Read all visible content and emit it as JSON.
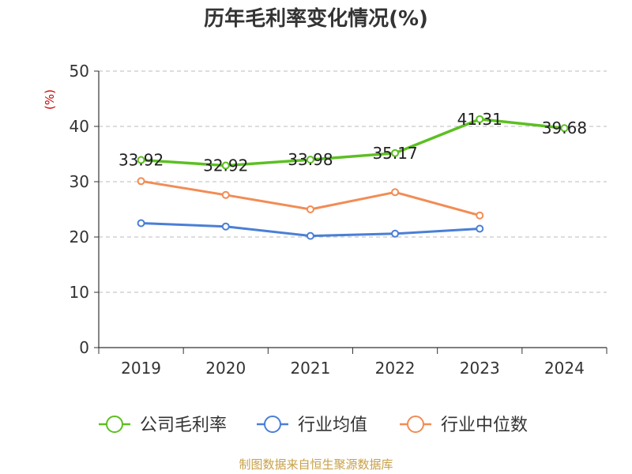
{
  "chart_data": {
    "type": "line",
    "title": "历年毛利率变化情况(%)",
    "ylabel": "(%)",
    "xlabel": "",
    "categories": [
      "2019",
      "2020",
      "2021",
      "2022",
      "2023",
      "2024"
    ],
    "ylim": [
      0,
      50
    ],
    "yticks": [
      0,
      10,
      20,
      30,
      40,
      50
    ],
    "grid": true,
    "legend_position": "bottom",
    "series": [
      {
        "name": "公司毛利率",
        "color": "#5cbf22",
        "values": [
          33.92,
          32.92,
          33.98,
          35.17,
          41.31,
          39.68
        ],
        "data_labels": [
          "33.92",
          "32.92",
          "33.98",
          "35.17",
          "41.31",
          "39.68"
        ]
      },
      {
        "name": "行业均值",
        "color": "#4a7fd6",
        "values": [
          22.5,
          21.9,
          20.2,
          20.6,
          21.5,
          null
        ]
      },
      {
        "name": "行业中位数",
        "color": "#f28c55",
        "values": [
          30.1,
          27.6,
          25.0,
          28.1,
          23.9,
          null
        ]
      }
    ]
  },
  "source": "制图数据来自恒生聚源数据库"
}
